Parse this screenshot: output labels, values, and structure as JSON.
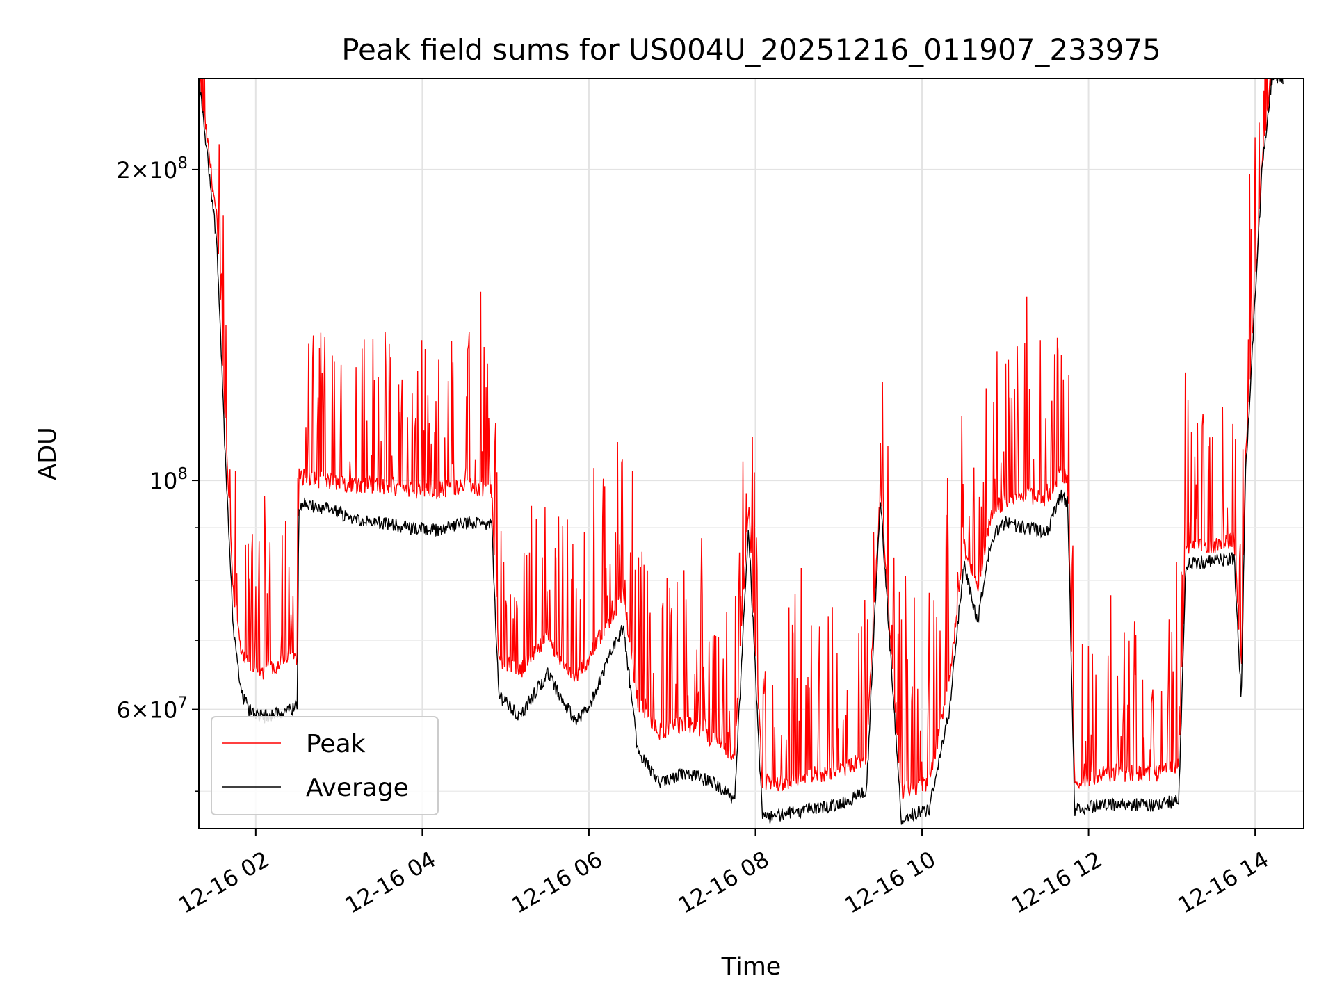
{
  "chart_data": {
    "type": "line",
    "title": "Peak field sums for US004U_20251216_011907_233975",
    "xlabel": "Time",
    "ylabel": "ADU",
    "yscale": "log",
    "grid": true,
    "legend_position": "lower-left",
    "xlim": [
      "2025-12-16T01:19",
      "2025-12-16T14:35"
    ],
    "ylim": [
      46000000,
      245000000
    ],
    "x_ticks": [
      {
        "value": "2025-12-16T02:00",
        "label": "12-16 02"
      },
      {
        "value": "2025-12-16T04:00",
        "label": "12-16 04"
      },
      {
        "value": "2025-12-16T06:00",
        "label": "12-16 06"
      },
      {
        "value": "2025-12-16T08:00",
        "label": "12-16 08"
      },
      {
        "value": "2025-12-16T10:00",
        "label": "12-16 10"
      },
      {
        "value": "2025-12-16T12:00",
        "label": "12-16 12"
      },
      {
        "value": "2025-12-16T14:00",
        "label": "12-16 14"
      }
    ],
    "y_ticks_major": [
      {
        "value": 60000000,
        "mant": "6",
        "exp": "7"
      },
      {
        "value": 100000000,
        "mant": "",
        "exp": "8"
      },
      {
        "value": 200000000,
        "mant": "2",
        "exp": "8"
      }
    ],
    "y_ticks_minor": [
      50000000,
      70000000,
      80000000,
      90000000
    ],
    "series": [
      {
        "name": "Peak",
        "color": "#ff0000",
        "x": [
          "2025-12-16T01:19",
          "2025-12-16T01:32",
          "2025-12-16T01:38",
          "2025-12-16T01:44",
          "2025-12-16T01:50",
          "2025-12-16T01:55",
          "2025-12-16T02:05",
          "2025-12-16T02:15",
          "2025-12-16T02:25",
          "2025-12-16T02:30",
          "2025-12-16T02:31",
          "2025-12-16T02:50",
          "2025-12-16T03:10",
          "2025-12-16T03:30",
          "2025-12-16T03:50",
          "2025-12-16T04:10",
          "2025-12-16T04:30",
          "2025-12-16T04:50",
          "2025-12-16T04:55",
          "2025-12-16T05:10",
          "2025-12-16T05:30",
          "2025-12-16T05:50",
          "2025-12-16T06:00",
          "2025-12-16T06:15",
          "2025-12-16T06:25",
          "2025-12-16T06:35",
          "2025-12-16T06:50",
          "2025-12-16T07:10",
          "2025-12-16T07:30",
          "2025-12-16T07:45",
          "2025-12-16T07:55",
          "2025-12-16T08:05",
          "2025-12-16T08:20",
          "2025-12-16T08:40",
          "2025-12-16T09:00",
          "2025-12-16T09:20",
          "2025-12-16T09:30",
          "2025-12-16T09:45",
          "2025-12-16T10:05",
          "2025-12-16T10:20",
          "2025-12-16T10:30",
          "2025-12-16T10:40",
          "2025-12-16T10:50",
          "2025-12-16T11:00",
          "2025-12-16T11:15",
          "2025-12-16T11:30",
          "2025-12-16T11:40",
          "2025-12-16T11:45",
          "2025-12-16T11:50",
          "2025-12-16T12:10",
          "2025-12-16T12:30",
          "2025-12-16T12:50",
          "2025-12-16T13:05",
          "2025-12-16T13:10",
          "2025-12-16T13:30",
          "2025-12-16T13:45",
          "2025-12-16T13:50",
          "2025-12-16T13:53",
          "2025-12-16T14:00",
          "2025-12-16T14:05",
          "2025-12-16T14:12",
          "2025-12-16T14:20"
        ],
        "values": [
          245000000,
          175000000,
          112000000,
          76000000,
          66000000,
          65000000,
          64000000,
          65000000,
          66000000,
          66000000,
          99000000,
          98000000,
          97000000,
          97000000,
          96000000,
          96000000,
          97000000,
          96000000,
          66000000,
          64000000,
          69000000,
          63000000,
          66000000,
          72000000,
          76000000,
          60000000,
          56000000,
          57000000,
          55000000,
          53000000,
          93000000,
          50000000,
          50000000,
          51000000,
          51000000,
          53000000,
          96000000,
          49000000,
          50000000,
          63000000,
          85000000,
          77000000,
          91000000,
          94000000,
          95000000,
          94000000,
          100000000,
          98000000,
          50000000,
          51000000,
          51000000,
          51000000,
          52000000,
          84000000,
          85000000,
          86000000,
          64000000,
          102000000,
          150000000,
          200000000,
          245000000,
          245000000
        ]
      },
      {
        "name": "Average",
        "color": "#000000",
        "x": [
          "2025-12-16T01:19",
          "2025-12-16T01:32",
          "2025-12-16T01:38",
          "2025-12-16T01:44",
          "2025-12-16T01:50",
          "2025-12-16T01:55",
          "2025-12-16T02:05",
          "2025-12-16T02:15",
          "2025-12-16T02:25",
          "2025-12-16T02:30",
          "2025-12-16T02:31",
          "2025-12-16T02:50",
          "2025-12-16T03:10",
          "2025-12-16T03:30",
          "2025-12-16T03:50",
          "2025-12-16T04:10",
          "2025-12-16T04:30",
          "2025-12-16T04:50",
          "2025-12-16T04:55",
          "2025-12-16T05:10",
          "2025-12-16T05:30",
          "2025-12-16T05:50",
          "2025-12-16T06:00",
          "2025-12-16T06:15",
          "2025-12-16T06:25",
          "2025-12-16T06:35",
          "2025-12-16T06:50",
          "2025-12-16T07:10",
          "2025-12-16T07:30",
          "2025-12-16T07:45",
          "2025-12-16T07:55",
          "2025-12-16T08:05",
          "2025-12-16T08:20",
          "2025-12-16T08:40",
          "2025-12-16T09:00",
          "2025-12-16T09:20",
          "2025-12-16T09:30",
          "2025-12-16T09:45",
          "2025-12-16T10:05",
          "2025-12-16T10:20",
          "2025-12-16T10:30",
          "2025-12-16T10:40",
          "2025-12-16T10:50",
          "2025-12-16T11:00",
          "2025-12-16T11:15",
          "2025-12-16T11:30",
          "2025-12-16T11:40",
          "2025-12-16T11:45",
          "2025-12-16T11:50",
          "2025-12-16T12:10",
          "2025-12-16T12:30",
          "2025-12-16T12:50",
          "2025-12-16T13:05",
          "2025-12-16T13:10",
          "2025-12-16T13:30",
          "2025-12-16T13:45",
          "2025-12-16T13:50",
          "2025-12-16T13:53",
          "2025-12-16T14:00",
          "2025-12-16T14:05",
          "2025-12-16T14:12",
          "2025-12-16T14:20"
        ],
        "values": [
          245000000,
          170000000,
          106000000,
          71000000,
          62000000,
          60000000,
          59000000,
          59500000,
          60000000,
          60500000,
          95000000,
          94000000,
          92000000,
          91000000,
          90000000,
          89500000,
          91000000,
          90500000,
          62000000,
          59000000,
          65000000,
          58500000,
          60000000,
          68000000,
          72000000,
          55000000,
          51000000,
          52000000,
          51000000,
          49000000,
          90000000,
          47000000,
          47500000,
          48000000,
          48500000,
          50000000,
          96000000,
          47000000,
          48000000,
          60000000,
          83000000,
          73000000,
          88000000,
          91000000,
          90000000,
          89000000,
          97000000,
          95000000,
          48000000,
          48500000,
          48500000,
          48500000,
          49000000,
          83000000,
          83500000,
          84000000,
          61000000,
          101000000,
          150000000,
          200000000,
          245000000,
          245000000
        ]
      }
    ]
  }
}
